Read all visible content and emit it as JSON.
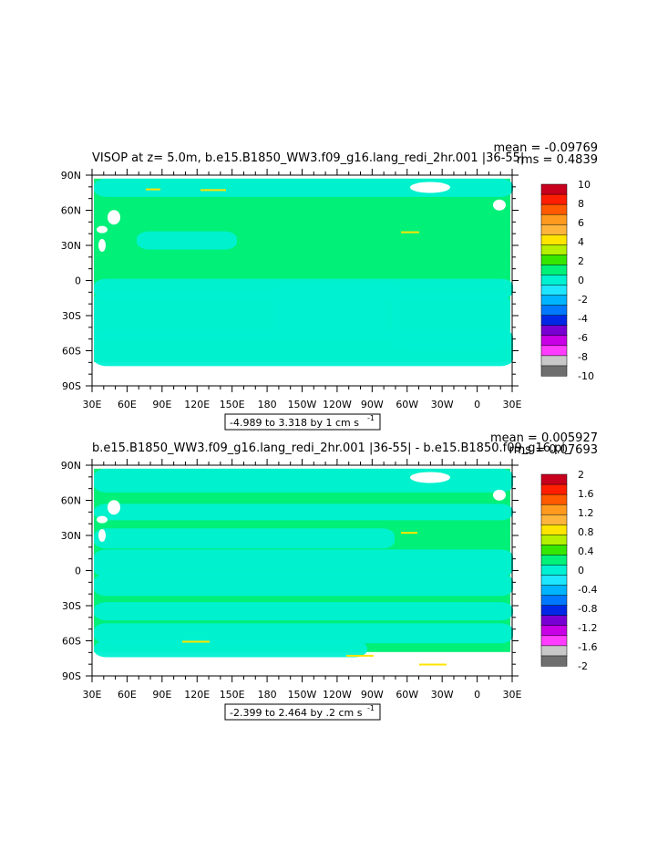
{
  "chart_data": [
    {
      "type": "heatmap",
      "title": "VISOP at z=     5.0m, b.e15.B1850_WW3.f09_g16.lang_redi_2hr.001  |36-55|",
      "stats": {
        "mean": "mean = -0.09769",
        "rms": "rms = 0.4839"
      },
      "range_label": "-4.989 to 3.318 by 1 cm s",
      "range_exp": "-1",
      "xticks": [
        "30E",
        "60E",
        "90E",
        "120E",
        "150E",
        "180",
        "150W",
        "120W",
        "90W",
        "60W",
        "30W",
        "0",
        "30E"
      ],
      "yticks": [
        "90N",
        "60N",
        "30N",
        "0",
        "30S",
        "60S",
        "90S"
      ],
      "levels": [
        "10",
        "8",
        "6",
        "4",
        "2",
        "0",
        "-2",
        "-4",
        "-6",
        "-8",
        "-10"
      ],
      "colorbar_colors": [
        "#c8001e",
        "#ff1e00",
        "#ff5a00",
        "#ff9a1e",
        "#ffb43c",
        "#ffe400",
        "#b4f000",
        "#36e600",
        "#00f078",
        "#00f0d2",
        "#1ee6ff",
        "#00b4ff",
        "#0078ff",
        "#0028e6",
        "#7800d2",
        "#c800e6",
        "#ff3cff",
        "#c8c8c8",
        "#6e6e6e"
      ],
      "background_color": "#00f078",
      "secondary_color": "#00f0d2"
    },
    {
      "type": "heatmap",
      "title": "b.e15.B1850_WW3.f09_g16.lang_redi_2hr.001  |36-55|  - b.e15.B1850.f09_g16.pi_",
      "stats": {
        "mean": "mean = 0.005927",
        "rms": "rms = 0.07693"
      },
      "range_label": "-2.399 to 2.464 by .2 cm s",
      "range_exp": "-1",
      "xticks": [
        "30E",
        "60E",
        "90E",
        "120E",
        "150E",
        "180",
        "150W",
        "120W",
        "90W",
        "60W",
        "30W",
        "0",
        "30E"
      ],
      "yticks": [
        "90N",
        "60N",
        "30N",
        "0",
        "30S",
        "60S",
        "90S"
      ],
      "levels": [
        "2",
        "1.6",
        "1.2",
        "0.8",
        "0.4",
        "0",
        "-0.4",
        "-0.8",
        "-1.2",
        "-1.6",
        "-2"
      ],
      "colorbar_colors": [
        "#c8001e",
        "#ff1e00",
        "#ff5a00",
        "#ff9a1e",
        "#ffb43c",
        "#ffe400",
        "#b4f000",
        "#36e600",
        "#00f078",
        "#00f0d2",
        "#1ee6ff",
        "#00b4ff",
        "#0078ff",
        "#0028e6",
        "#7800d2",
        "#c800e6",
        "#ff3cff",
        "#c8c8c8",
        "#6e6e6e"
      ],
      "background_color": "#00f078",
      "secondary_color": "#00f0d2"
    }
  ]
}
